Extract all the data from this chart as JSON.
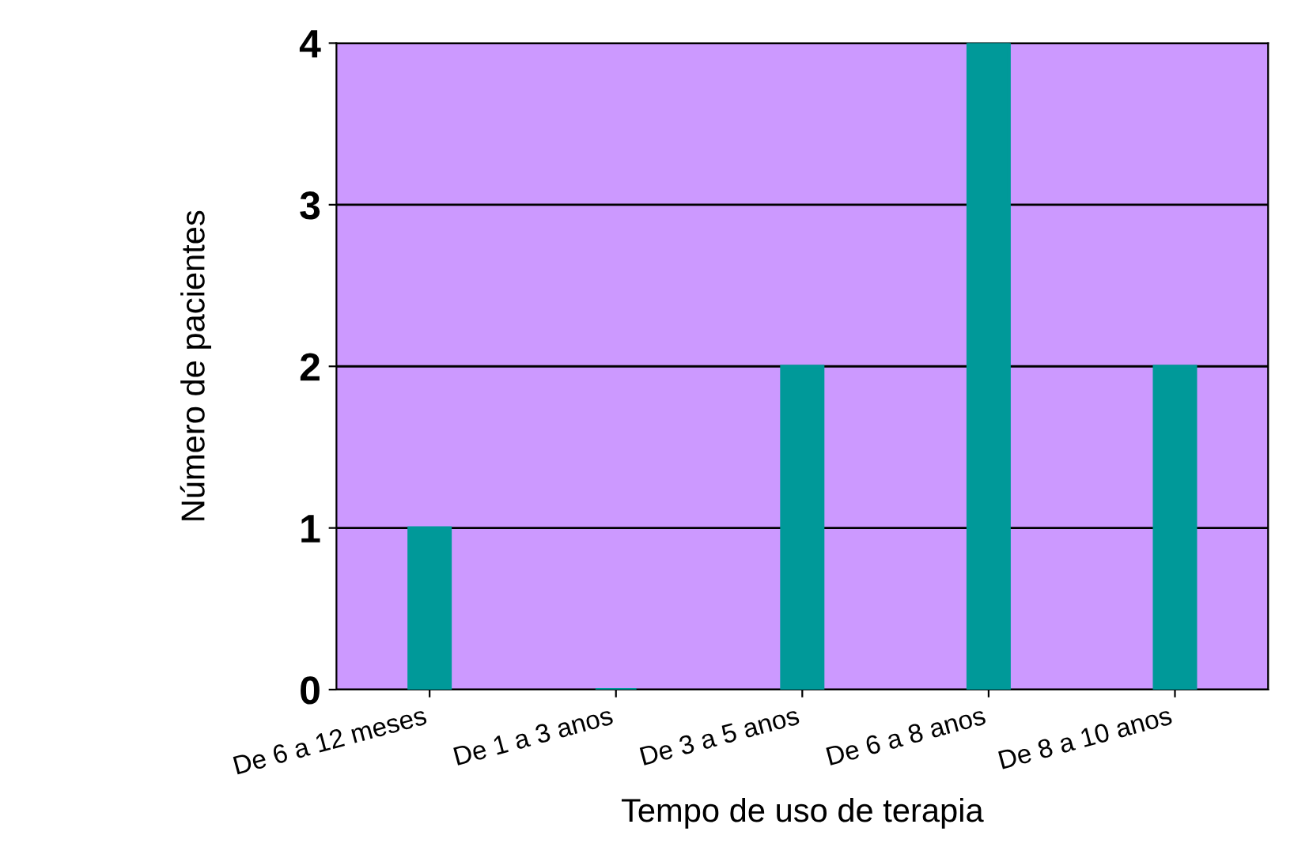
{
  "chart_data": {
    "type": "bar",
    "xlabel": "Tempo de uso de terapia",
    "ylabel": "Número de pacientes",
    "categories": [
      "De 6 a 12 meses",
      "De 1 a 3 anos",
      "De 3 a 5 anos",
      "De 6 a 8 anos",
      "De 8 a 10 anos"
    ],
    "values": [
      1,
      0,
      2,
      4,
      2
    ],
    "color": "#009999",
    "ylim": [
      0,
      4
    ],
    "yticks": [
      0,
      1,
      2,
      3,
      4
    ],
    "grid": "y"
  }
}
